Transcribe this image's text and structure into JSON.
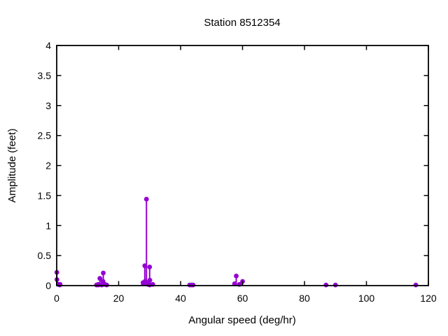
{
  "chart_data": {
    "type": "scatter",
    "style": "stems-with-filled-circles",
    "title": "Station 8512354",
    "xlabel": "Angular speed (deg/hr)",
    "ylabel": "Amplitude (feet)",
    "xlim": [
      0,
      120
    ],
    "ylim": [
      0,
      4
    ],
    "x_ticks": [
      0,
      20,
      40,
      60,
      80,
      100,
      120
    ],
    "y_ticks": [
      0,
      0.5,
      1,
      1.5,
      2,
      2.5,
      3,
      3.5,
      4
    ],
    "grid": false,
    "legend": "none",
    "marker_color": "#9400d3",
    "axis_color": "#000000",
    "background_color": "#ffffff",
    "points": [
      {
        "x": 0.041,
        "y": 0.22
      },
      {
        "x": 0.082,
        "y": 0.1
      },
      {
        "x": 0.544,
        "y": 0.02
      },
      {
        "x": 1.016,
        "y": 0.01
      },
      {
        "x": 1.098,
        "y": 0.02
      },
      {
        "x": 12.854,
        "y": 0.01
      },
      {
        "x": 13.399,
        "y": 0.02
      },
      {
        "x": 13.472,
        "y": 0.01
      },
      {
        "x": 13.943,
        "y": 0.12
      },
      {
        "x": 14.497,
        "y": 0.01
      },
      {
        "x": 14.959,
        "y": 0.07
      },
      {
        "x": 15.0,
        "y": 0.02
      },
      {
        "x": 15.041,
        "y": 0.21
      },
      {
        "x": 15.585,
        "y": 0.02
      },
      {
        "x": 16.139,
        "y": 0.01
      },
      {
        "x": 27.895,
        "y": 0.05
      },
      {
        "x": 27.968,
        "y": 0.03
      },
      {
        "x": 28.44,
        "y": 0.33
      },
      {
        "x": 28.513,
        "y": 0.07
      },
      {
        "x": 28.984,
        "y": 1.44
      },
      {
        "x": 29.456,
        "y": 0.02
      },
      {
        "x": 29.528,
        "y": 0.05
      },
      {
        "x": 29.959,
        "y": 0.02
      },
      {
        "x": 30.0,
        "y": 0.31
      },
      {
        "x": 30.041,
        "y": 0.01
      },
      {
        "x": 30.082,
        "y": 0.09
      },
      {
        "x": 31.016,
        "y": 0.02
      },
      {
        "x": 42.927,
        "y": 0.01
      },
      {
        "x": 43.476,
        "y": 0.01
      },
      {
        "x": 44.025,
        "y": 0.01
      },
      {
        "x": 57.424,
        "y": 0.03
      },
      {
        "x": 57.968,
        "y": 0.16
      },
      {
        "x": 58.984,
        "y": 0.02
      },
      {
        "x": 60.0,
        "y": 0.07
      },
      {
        "x": 86.952,
        "y": 0.01
      },
      {
        "x": 90.0,
        "y": 0.01
      },
      {
        "x": 115.936,
        "y": 0.01
      }
    ]
  }
}
